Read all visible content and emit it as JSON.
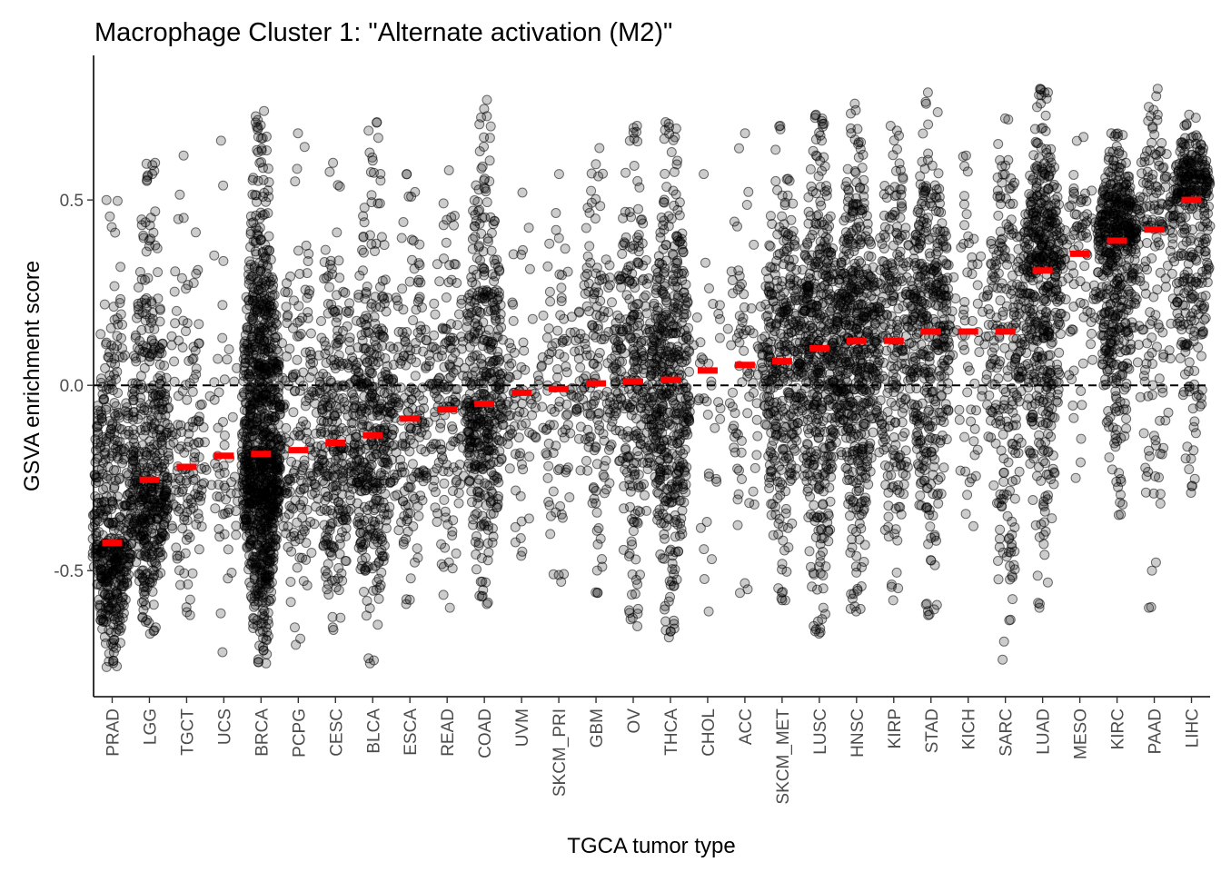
{
  "chart_data": {
    "type": "scatter",
    "title": "Macrophage Cluster 1: \"Alternate activation (M2)\"",
    "xlabel": "TGCA tumor type",
    "ylabel": "GSVA enrichment score",
    "ylim": [
      -0.84,
      0.89
    ],
    "yticks": [
      -0.5,
      0.0,
      0.5
    ],
    "ytick_labels": [
      "-0.5",
      "0.0",
      "0.5"
    ],
    "reference_line": {
      "y": 0,
      "style": "dashed",
      "color": "#000000"
    },
    "grid": false,
    "point_color": "#000000",
    "median_color": "#ff0000",
    "categories": [
      "PRAD",
      "LGG",
      "TGCT",
      "UCS",
      "BRCA",
      "PCPG",
      "CESC",
      "BLCA",
      "ESCA",
      "READ",
      "COAD",
      "UVM",
      "SKCM_PRI",
      "GBM",
      "OV",
      "THCA",
      "CHOL",
      "ACC",
      "SKCM_MET",
      "LUSC",
      "HNSC",
      "KIRP",
      "STAD",
      "KICH",
      "SARC",
      "LUAD",
      "MESO",
      "KIRC",
      "PAAD",
      "LIHC"
    ],
    "medians": [
      -0.425,
      -0.255,
      -0.22,
      -0.19,
      -0.185,
      -0.175,
      -0.155,
      -0.135,
      -0.09,
      -0.065,
      -0.05,
      -0.02,
      -0.01,
      0.005,
      0.01,
      0.015,
      0.04,
      0.055,
      0.065,
      0.1,
      0.12,
      0.12,
      0.145,
      0.145,
      0.145,
      0.31,
      0.355,
      0.39,
      0.42,
      0.5
    ],
    "ranges": [
      [
        -0.76,
        0.5
      ],
      [
        -0.67,
        0.6
      ],
      [
        -0.62,
        0.62
      ],
      [
        -0.72,
        0.66
      ],
      [
        -0.75,
        0.74
      ],
      [
        -0.7,
        0.68
      ],
      [
        -0.66,
        0.6
      ],
      [
        -0.75,
        0.71
      ],
      [
        -0.59,
        0.57
      ],
      [
        -0.6,
        0.58
      ],
      [
        -0.59,
        0.77
      ],
      [
        -0.46,
        0.52
      ],
      [
        -0.53,
        0.57
      ],
      [
        -0.56,
        0.64
      ],
      [
        -0.65,
        0.7
      ],
      [
        -0.68,
        0.71
      ],
      [
        -0.61,
        0.57
      ],
      [
        -0.56,
        0.68
      ],
      [
        -0.58,
        0.7
      ],
      [
        -0.67,
        0.73
      ],
      [
        -0.61,
        0.76
      ],
      [
        -0.58,
        0.7
      ],
      [
        -0.62,
        0.79
      ],
      [
        -0.38,
        0.62
      ],
      [
        -0.74,
        0.72
      ],
      [
        -0.6,
        0.8
      ],
      [
        -0.25,
        0.67
      ],
      [
        -0.35,
        0.68
      ],
      [
        -0.6,
        0.8
      ],
      [
        -0.29,
        0.73
      ]
    ],
    "sample_counts": [
      500,
      510,
      150,
      57,
      1100,
      180,
      300,
      410,
      185,
      165,
      460,
      80,
      100,
      170,
      300,
      510,
      36,
      79,
      370,
      500,
      520,
      290,
      415,
      66,
      260,
      515,
      87,
      530,
      180,
      370
    ]
  }
}
